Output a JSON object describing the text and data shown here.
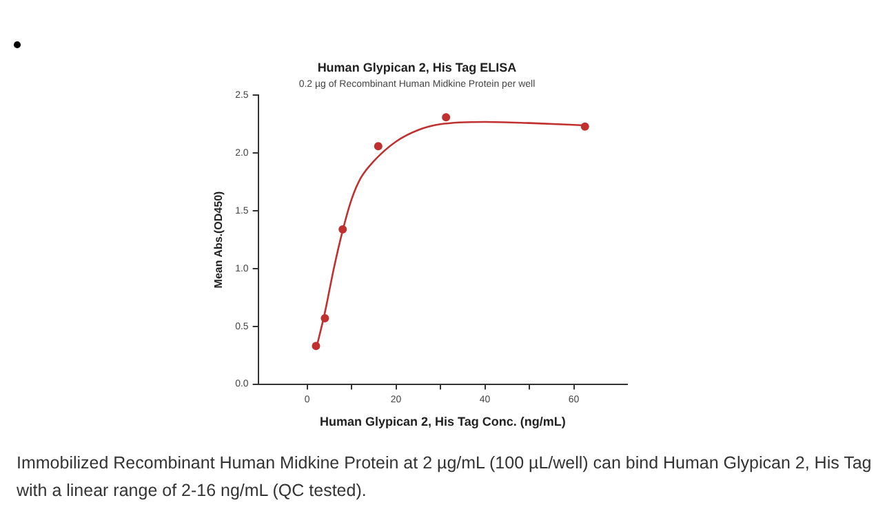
{
  "chart_data": {
    "type": "scatter",
    "title": "Human Glypican 2, His Tag ELISA",
    "subtitle": "0.2 µg of Recombinant Human Midkine Protein per well",
    "xlabel": "Human Glypican 2, His Tag Conc. (ng/mL)",
    "ylabel": "Mean Abs.(OD450)",
    "xlim": [
      -11,
      72
    ],
    "ylim": [
      0,
      2.5
    ],
    "xticks": [
      0,
      {
        "value": 10,
        "label": null
      },
      20,
      {
        "value": 30,
        "label": null
      },
      40,
      {
        "value": 50,
        "label": null
      },
      60
    ],
    "yticks": [
      {
        "value": 0,
        "label": "0.0"
      },
      0.5,
      {
        "value": 1,
        "label": "1.0"
      },
      1.5,
      {
        "value": 2,
        "label": "2.0"
      },
      2.5
    ],
    "grid": false,
    "legend": false,
    "series": [
      {
        "type": "scatter",
        "color": "#c0302e",
        "marker": "circle",
        "x": [
          2,
          4,
          8,
          16,
          31.25,
          62.5
        ],
        "values": [
          0.33,
          0.57,
          1.34,
          2.06,
          2.31,
          2.23
        ]
      },
      {
        "type": "line",
        "color": "#c0302e",
        "marker": "none",
        "line_style": "solid",
        "x": [
          2,
          4,
          6,
          8,
          10,
          12,
          15,
          20,
          25,
          30,
          40,
          50,
          62.5
        ],
        "values": [
          0.3,
          0.62,
          1.0,
          1.33,
          1.6,
          1.78,
          1.93,
          2.1,
          2.2,
          2.25,
          2.27,
          2.26,
          2.24
        ]
      }
    ],
    "annotations": [
      "Immobilized Recombinant Human Midkine Protein at 2 µg/mL (100 µL/well) can bind Human Glypican 2, His Tag with a linear range of 2-16 ng/mL (QC tested)."
    ]
  }
}
